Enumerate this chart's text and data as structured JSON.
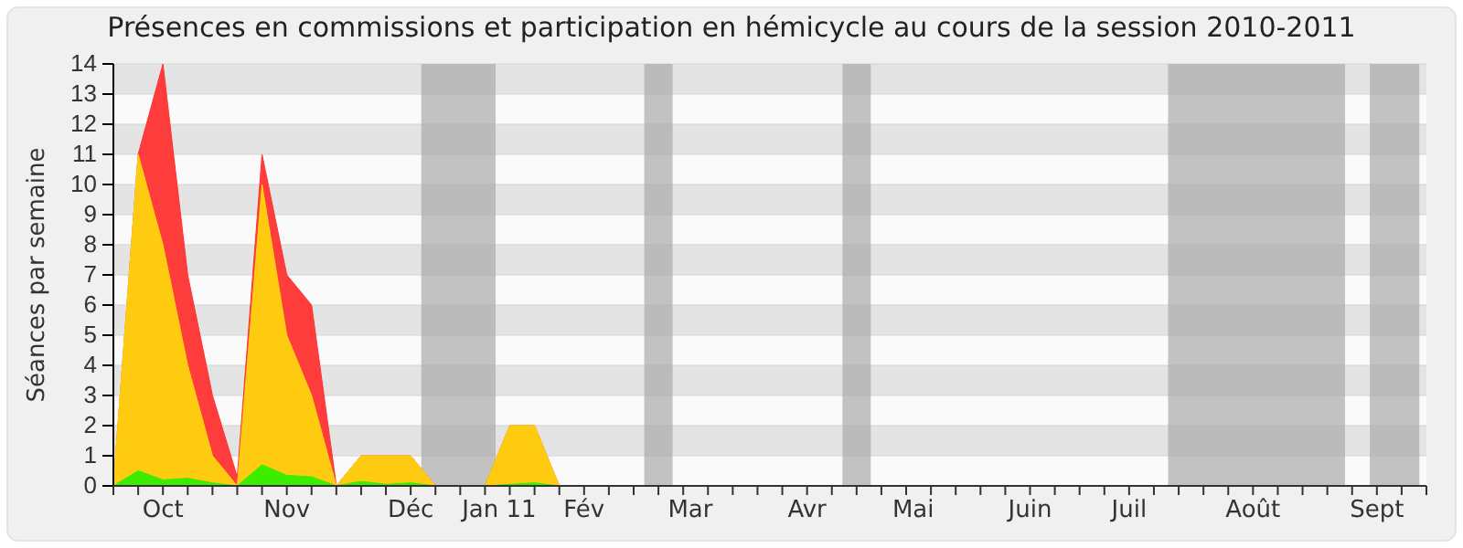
{
  "chart_data": {
    "type": "area",
    "title": "Présences en commissions et participation en hémicycle au cours de la session 2010-2011",
    "ylabel": "Séances par semaine",
    "x": [
      "2010-09-20",
      "2010-09-27",
      "2010-10-04",
      "2010-10-11",
      "2010-10-18",
      "2010-10-25",
      "2010-11-01",
      "2010-11-08",
      "2010-11-15",
      "2010-11-22",
      "2010-11-29",
      "2010-12-06",
      "2010-12-13",
      "2010-12-20",
      "2010-12-27",
      "2011-01-03",
      "2011-01-10",
      "2011-01-17",
      "2011-01-24",
      "2011-01-31",
      "2011-02-07",
      "2011-02-14",
      "2011-02-21",
      "2011-02-28",
      "2011-03-07",
      "2011-03-14",
      "2011-03-21",
      "2011-03-28",
      "2011-04-04",
      "2011-04-11",
      "2011-04-18",
      "2011-04-25",
      "2011-05-02",
      "2011-05-09",
      "2011-05-16",
      "2011-05-23",
      "2011-05-30",
      "2011-06-06",
      "2011-06-13",
      "2011-06-20",
      "2011-06-27",
      "2011-07-04",
      "2011-07-11",
      "2011-07-18",
      "2011-07-25",
      "2011-08-01",
      "2011-08-08",
      "2011-08-15",
      "2011-08-22",
      "2011-08-29",
      "2011-09-05",
      "2011-09-12",
      "2011-09-19"
    ],
    "xlim": [
      "2010-09-20",
      "2011-09-26"
    ],
    "xticks": [
      {
        "value": "2010-09-20",
        "label": null
      },
      {
        "value": "2010-09-27",
        "label": null
      },
      {
        "value": "2010-10-04",
        "label": null
      },
      {
        "value": "2010-10-11",
        "label": null
      },
      {
        "value": "2010-10-18",
        "label": null
      },
      {
        "value": "2010-10-25",
        "label": null
      },
      {
        "value": "2010-11-01",
        "label": null
      },
      {
        "value": "2010-11-08",
        "label": null
      },
      {
        "value": "2010-11-15",
        "label": null
      },
      {
        "value": "2010-11-22",
        "label": null
      },
      {
        "value": "2010-11-29",
        "label": null
      },
      {
        "value": "2010-12-06",
        "label": null
      },
      {
        "value": "2010-12-13",
        "label": null
      },
      {
        "value": "2010-12-20",
        "label": null
      },
      {
        "value": "2010-12-27",
        "label": null
      },
      {
        "value": "2011-01-03",
        "label": null
      },
      {
        "value": "2011-01-10",
        "label": null
      },
      {
        "value": "2011-01-17",
        "label": null
      },
      {
        "value": "2011-01-24",
        "label": null
      },
      {
        "value": "2011-01-31",
        "label": null
      },
      {
        "value": "2011-02-07",
        "label": null
      },
      {
        "value": "2011-02-14",
        "label": null
      },
      {
        "value": "2011-02-21",
        "label": null
      },
      {
        "value": "2011-02-28",
        "label": null
      },
      {
        "value": "2011-03-07",
        "label": null
      },
      {
        "value": "2011-03-14",
        "label": null
      },
      {
        "value": "2011-03-21",
        "label": null
      },
      {
        "value": "2011-03-28",
        "label": null
      },
      {
        "value": "2011-04-04",
        "label": null
      },
      {
        "value": "2011-04-11",
        "label": null
      },
      {
        "value": "2011-04-18",
        "label": null
      },
      {
        "value": "2011-04-25",
        "label": null
      },
      {
        "value": "2011-05-02",
        "label": null
      },
      {
        "value": "2011-05-09",
        "label": null
      },
      {
        "value": "2011-05-16",
        "label": null
      },
      {
        "value": "2011-05-23",
        "label": null
      },
      {
        "value": "2011-05-30",
        "label": null
      },
      {
        "value": "2011-06-06",
        "label": null
      },
      {
        "value": "2011-06-13",
        "label": null
      },
      {
        "value": "2011-06-20",
        "label": null
      },
      {
        "value": "2011-06-27",
        "label": null
      },
      {
        "value": "2011-07-04",
        "label": null
      },
      {
        "value": "2011-07-11",
        "label": null
      },
      {
        "value": "2011-07-18",
        "label": null
      },
      {
        "value": "2011-07-25",
        "label": null
      },
      {
        "value": "2011-08-01",
        "label": null
      },
      {
        "value": "2011-08-08",
        "label": null
      },
      {
        "value": "2011-08-15",
        "label": null
      },
      {
        "value": "2011-08-22",
        "label": null
      },
      {
        "value": "2011-08-29",
        "label": null
      },
      {
        "value": "2011-09-05",
        "label": null
      },
      {
        "value": "2011-09-12",
        "label": null
      },
      {
        "value": "2011-09-19",
        "label": null
      },
      {
        "value": "2011-09-26",
        "label": null
      },
      {
        "value": "2010-10-04",
        "label": "Oct"
      },
      {
        "value": "2010-11-08",
        "label": "Nov"
      },
      {
        "value": "2010-12-13",
        "label": "Déc"
      },
      {
        "value": "2011-01-07",
        "label": "Jan 11"
      },
      {
        "value": "2011-01-31",
        "label": "Fév"
      },
      {
        "value": "2011-03-02",
        "label": "Mar"
      },
      {
        "value": "2011-04-04",
        "label": "Avr"
      },
      {
        "value": "2011-05-04",
        "label": "Mai"
      },
      {
        "value": "2011-06-06",
        "label": "Juin"
      },
      {
        "value": "2011-07-04",
        "label": "Juil"
      },
      {
        "value": "2011-08-08",
        "label": "Août"
      },
      {
        "value": "2011-09-12",
        "label": "Sept"
      }
    ],
    "ylim": [
      0,
      14
    ],
    "yticks": [
      0,
      1,
      2,
      3,
      4,
      5,
      6,
      7,
      8,
      9,
      10,
      11,
      12,
      13,
      14
    ],
    "grid": "y",
    "bands": [
      {
        "axis": "x",
        "from": "2010-12-16",
        "to": "2011-01-06",
        "color": "#aaaaaa"
      },
      {
        "axis": "x",
        "from": "2011-02-17",
        "to": "2011-02-25",
        "color": "#aaaaaa"
      },
      {
        "axis": "x",
        "from": "2011-04-14",
        "to": "2011-04-22",
        "color": "#aaaaaa"
      },
      {
        "axis": "x",
        "from": "2011-07-15",
        "to": "2011-09-03",
        "color": "#aaaaaa"
      },
      {
        "axis": "x",
        "from": "2011-09-10",
        "to": "2011-09-24",
        "color": "#aaaaaa"
      }
    ],
    "series": [
      {
        "color": "#ff3333",
        "values": [
          0,
          11,
          14,
          7,
          3,
          0.3,
          11,
          7,
          6,
          0,
          1,
          1,
          1,
          0,
          0,
          0,
          2,
          2,
          0,
          0,
          0,
          0,
          0,
          0,
          0,
          0,
          0,
          0,
          0,
          0,
          0,
          0,
          0,
          0,
          0,
          0,
          0,
          0,
          0,
          0,
          0,
          0,
          0,
          0,
          0,
          0,
          0,
          0,
          0,
          0,
          0,
          0,
          0
        ]
      },
      {
        "color": "#ffd30f",
        "values": [
          0,
          11,
          8,
          4,
          1,
          0,
          10,
          5,
          3,
          0,
          1,
          1,
          1,
          0,
          0,
          0,
          2,
          2,
          0,
          0,
          0,
          0,
          0,
          0,
          0,
          0,
          0,
          0,
          0,
          0,
          0,
          0,
          0,
          0,
          0,
          0,
          0,
          0,
          0,
          0,
          0,
          0,
          0,
          0,
          0,
          0,
          0,
          0,
          0,
          0,
          0,
          0,
          0
        ]
      },
      {
        "color": "#33ee00",
        "values": [
          0,
          0.5,
          0.2,
          0.25,
          0.1,
          0,
          0.7,
          0.35,
          0.3,
          0,
          0.15,
          0.05,
          0.1,
          0,
          0,
          0,
          0.05,
          0.1,
          0,
          0,
          0,
          0,
          0,
          0,
          0,
          0,
          0,
          0,
          0,
          0,
          0,
          0,
          0,
          0,
          0,
          0,
          0,
          0,
          0,
          0,
          0,
          0,
          0,
          0,
          0,
          0,
          0,
          0,
          0,
          0,
          0,
          0,
          0
        ]
      }
    ]
  }
}
